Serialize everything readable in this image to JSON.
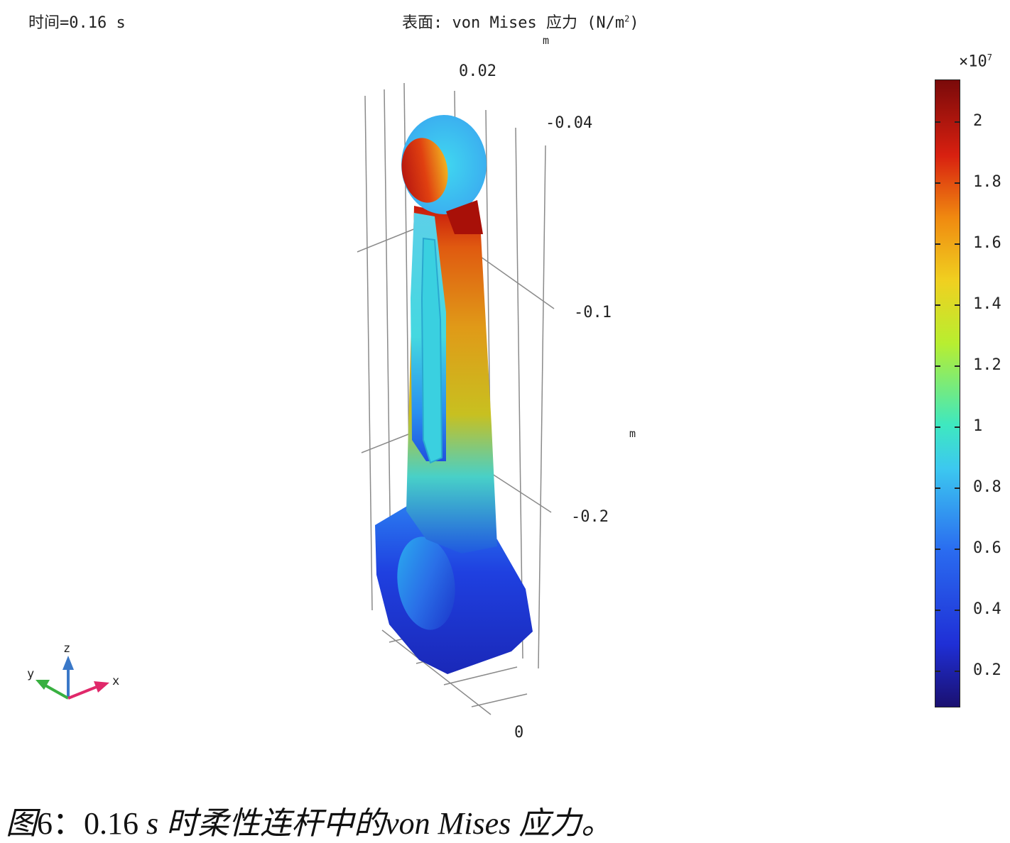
{
  "header": {
    "time_label": "时间=0.16 s",
    "title_prefix": "表面: von Mises 应力 (N/m",
    "title_sup": "2",
    "title_suffix": ")"
  },
  "axes": {
    "unit_top": "m",
    "unit_side": "m",
    "tick_x_top": "0.02",
    "tick_y_top": "-0.04",
    "tick_z_1": "-0.1",
    "tick_z_2": "-0.2",
    "tick_bottom": "0"
  },
  "colorbar": {
    "multiplier_base": "×10",
    "multiplier_exp": "7",
    "labels": [
      "2",
      "1.8",
      "1.6",
      "1.4",
      "1.2",
      "1",
      "0.8",
      "0.6",
      "0.4",
      "0.2"
    ]
  },
  "triad": {
    "z": "z",
    "y": "y",
    "x": "x"
  },
  "caption": {
    "prefix": "图",
    "number": "6：0.16",
    "unit": " s ",
    "text": "时柔性连杆中的",
    "term": "von Mises",
    "end": " 应力。"
  },
  "colors": {
    "max": "#7a0a0a",
    "high": "#d82010",
    "mid": "#f0d020",
    "cyan": "#3cc8f0",
    "low": "#1f2fd6",
    "min": "#1a1070"
  }
}
